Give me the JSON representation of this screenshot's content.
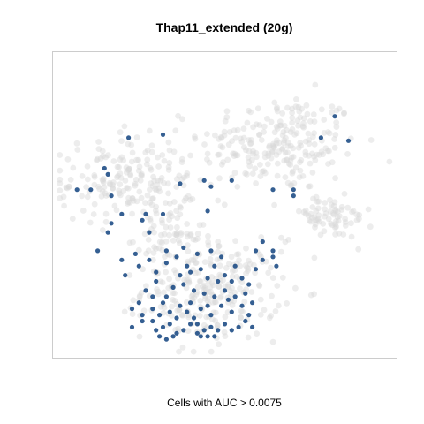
{
  "chart_data": {
    "type": "scatter",
    "title": "Thap11_extended (20g)",
    "xlabel": "Cells with AUC > 0.0075",
    "ylabel": "",
    "axes_ticks": false,
    "grid": false,
    "xlim": [
      0,
      100
    ],
    "ylim": [
      0,
      100
    ],
    "colors": {
      "background_cells": "#d6d6d6",
      "highlighted_cells": "#1f4e86",
      "panel_border": "#cccccc"
    },
    "clusters": [
      {
        "name": "top-right",
        "cx": 66,
        "cy": 70,
        "rx": 23,
        "ry": 16,
        "n": 230
      },
      {
        "name": "left",
        "cx": 22,
        "cy": 58,
        "rx": 20,
        "ry": 14,
        "n": 190
      },
      {
        "name": "bottom-center",
        "cx": 46,
        "cy": 22,
        "rx": 20,
        "ry": 16,
        "n": 260
      },
      {
        "name": "right-band",
        "cx": 80,
        "cy": 46,
        "rx": 13,
        "ry": 7,
        "n": 75
      },
      {
        "name": "connector",
        "cx": 34,
        "cy": 40,
        "rx": 10,
        "ry": 10,
        "n": 60
      }
    ],
    "series": [
      {
        "name": "",
        "points": [
          [
            22,
            72
          ],
          [
            32,
            73
          ],
          [
            15,
            62
          ],
          [
            16,
            60
          ],
          [
            11,
            55
          ],
          [
            7,
            55
          ],
          [
            17,
            53
          ],
          [
            37,
            57
          ],
          [
            44,
            58
          ],
          [
            46,
            56
          ],
          [
            52,
            58
          ],
          [
            45,
            48
          ],
          [
            32,
            47
          ],
          [
            20,
            47
          ],
          [
            17,
            44
          ],
          [
            26,
            45
          ],
          [
            27,
            47
          ],
          [
            16,
            41
          ],
          [
            13,
            35
          ],
          [
            28,
            41
          ],
          [
            64,
            55
          ],
          [
            70,
            55
          ],
          [
            70,
            53
          ],
          [
            59,
            35
          ],
          [
            61,
            38
          ],
          [
            61,
            32
          ],
          [
            64,
            33
          ],
          [
            59,
            29
          ],
          [
            65,
            30
          ],
          [
            64,
            35
          ],
          [
            82,
            79
          ],
          [
            78,
            72
          ],
          [
            86,
            71
          ],
          [
            21,
            27
          ],
          [
            25,
            30
          ],
          [
            28,
            32
          ],
          [
            30,
            28
          ],
          [
            33,
            31
          ],
          [
            36,
            33
          ],
          [
            39,
            30
          ],
          [
            40,
            28
          ],
          [
            43,
            29
          ],
          [
            45,
            26
          ],
          [
            47,
            30
          ],
          [
            50,
            27
          ],
          [
            52,
            25
          ],
          [
            55,
            26
          ],
          [
            57,
            24
          ],
          [
            53,
            30
          ],
          [
            49,
            33
          ],
          [
            46,
            35
          ],
          [
            42,
            34
          ],
          [
            38,
            36
          ],
          [
            33,
            35
          ],
          [
            24,
            34
          ],
          [
            20,
            32
          ],
          [
            30,
            25
          ],
          [
            35,
            23
          ],
          [
            38,
            24
          ],
          [
            41,
            22
          ],
          [
            44,
            21
          ],
          [
            47,
            20
          ],
          [
            50,
            22
          ],
          [
            53,
            20
          ],
          [
            56,
            21
          ],
          [
            58,
            18
          ],
          [
            55,
            17
          ],
          [
            52,
            15
          ],
          [
            49,
            17
          ],
          [
            46,
            14
          ],
          [
            43,
            16
          ],
          [
            40,
            18
          ],
          [
            37,
            17
          ],
          [
            34,
            15
          ],
          [
            32,
            18
          ],
          [
            29,
            20
          ],
          [
            27,
            22
          ],
          [
            25,
            18
          ],
          [
            23,
            16
          ],
          [
            26,
            14
          ],
          [
            29,
            12
          ],
          [
            30,
            9
          ],
          [
            32,
            10
          ],
          [
            34,
            11
          ],
          [
            36,
            8
          ],
          [
            38,
            9
          ],
          [
            40,
            11
          ],
          [
            42,
            8
          ],
          [
            44,
            9
          ],
          [
            46,
            10
          ],
          [
            48,
            9
          ],
          [
            50,
            11
          ],
          [
            52,
            9
          ],
          [
            54,
            10
          ],
          [
            56,
            12
          ],
          [
            58,
            10
          ],
          [
            31,
            7
          ],
          [
            33,
            6
          ],
          [
            35,
            7
          ],
          [
            43,
            7
          ],
          [
            45,
            7
          ],
          [
            47,
            7
          ],
          [
            36,
            13
          ],
          [
            41,
            13
          ],
          [
            39,
            15
          ],
          [
            45,
            17
          ],
          [
            33,
            20
          ],
          [
            26,
            12
          ],
          [
            57,
            14
          ],
          [
            23,
            10
          ],
          [
            48,
            25
          ],
          [
            37,
            27
          ],
          [
            29,
            16
          ],
          [
            51,
            19
          ],
          [
            31,
            14
          ],
          [
            42,
            11
          ]
        ]
      }
    ]
  }
}
